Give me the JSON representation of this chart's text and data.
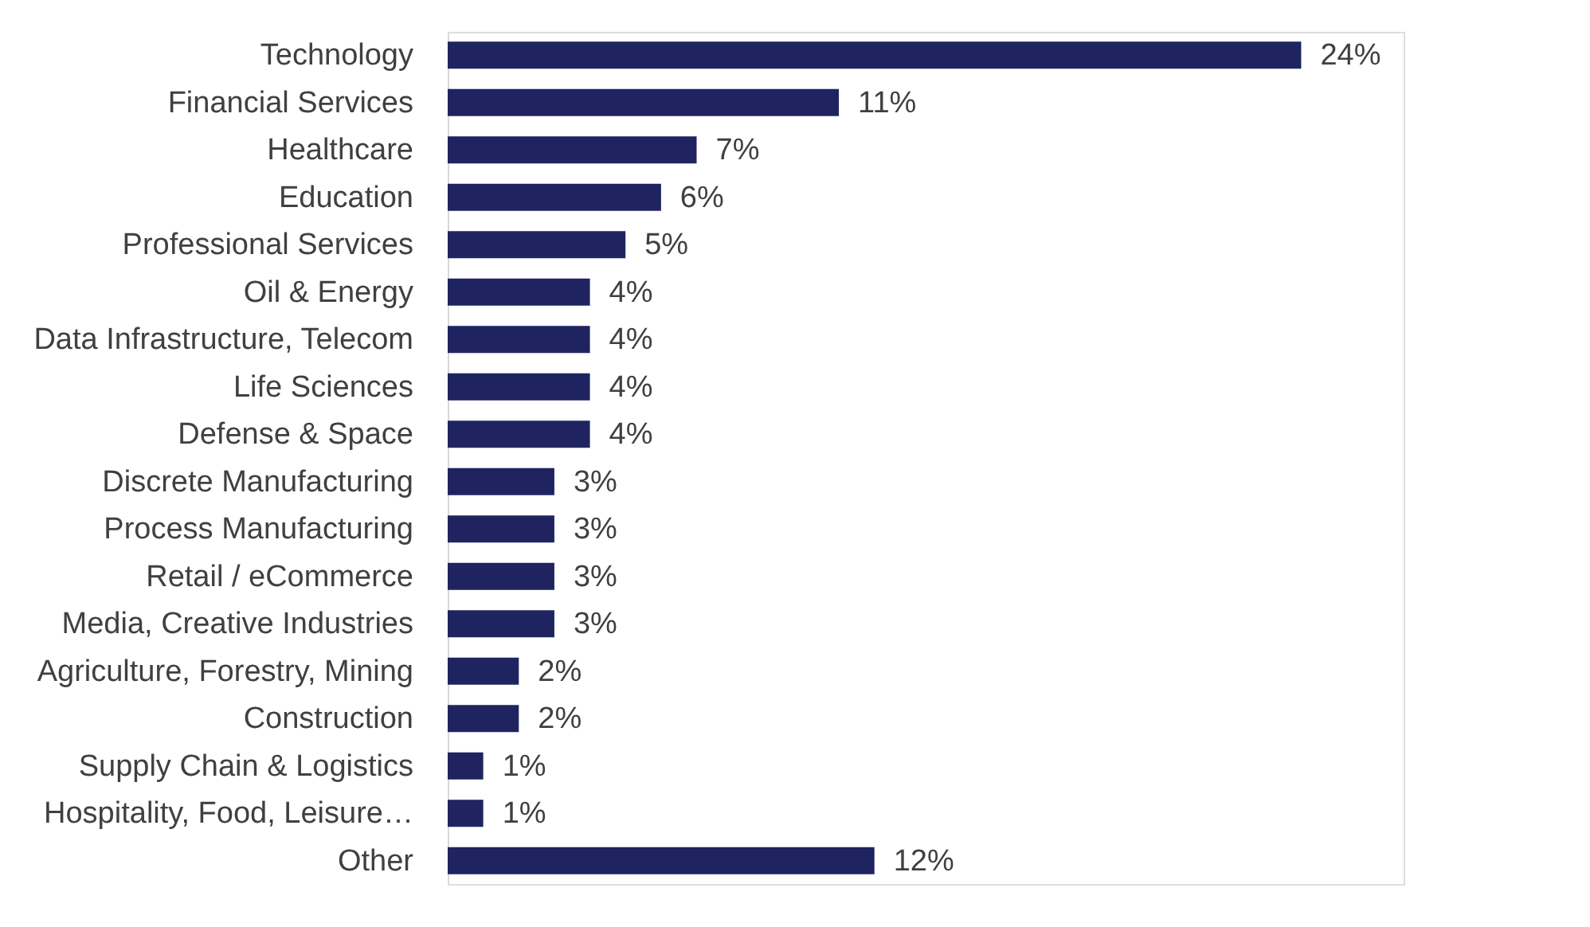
{
  "chart_data": {
    "type": "bar",
    "orientation": "horizontal",
    "color": "#1f2461",
    "categories": [
      "Technology",
      "Financial Services",
      "Healthcare",
      "Education",
      "Professional Services",
      "Oil & Energy",
      "Data Infrastructure, Telecom",
      "Life Sciences",
      "Defense & Space",
      "Discrete Manufacturing",
      "Process Manufacturing",
      "Retail / eCommerce",
      "Media, Creative Industries",
      "Agriculture, Forestry, Mining",
      "Construction",
      "Supply Chain & Logistics",
      "Hospitality, Food, Leisure…",
      "Other"
    ],
    "values": [
      24,
      11,
      7,
      6,
      5,
      4,
      4,
      4,
      4,
      3,
      3,
      3,
      3,
      2,
      2,
      1,
      1,
      12
    ],
    "value_labels": [
      "24%",
      "11%",
      "7%",
      "6%",
      "5%",
      "4%",
      "4%",
      "4%",
      "4%",
      "3%",
      "3%",
      "3%",
      "3%",
      "2%",
      "2%",
      "1%",
      "1%",
      "12%"
    ]
  }
}
